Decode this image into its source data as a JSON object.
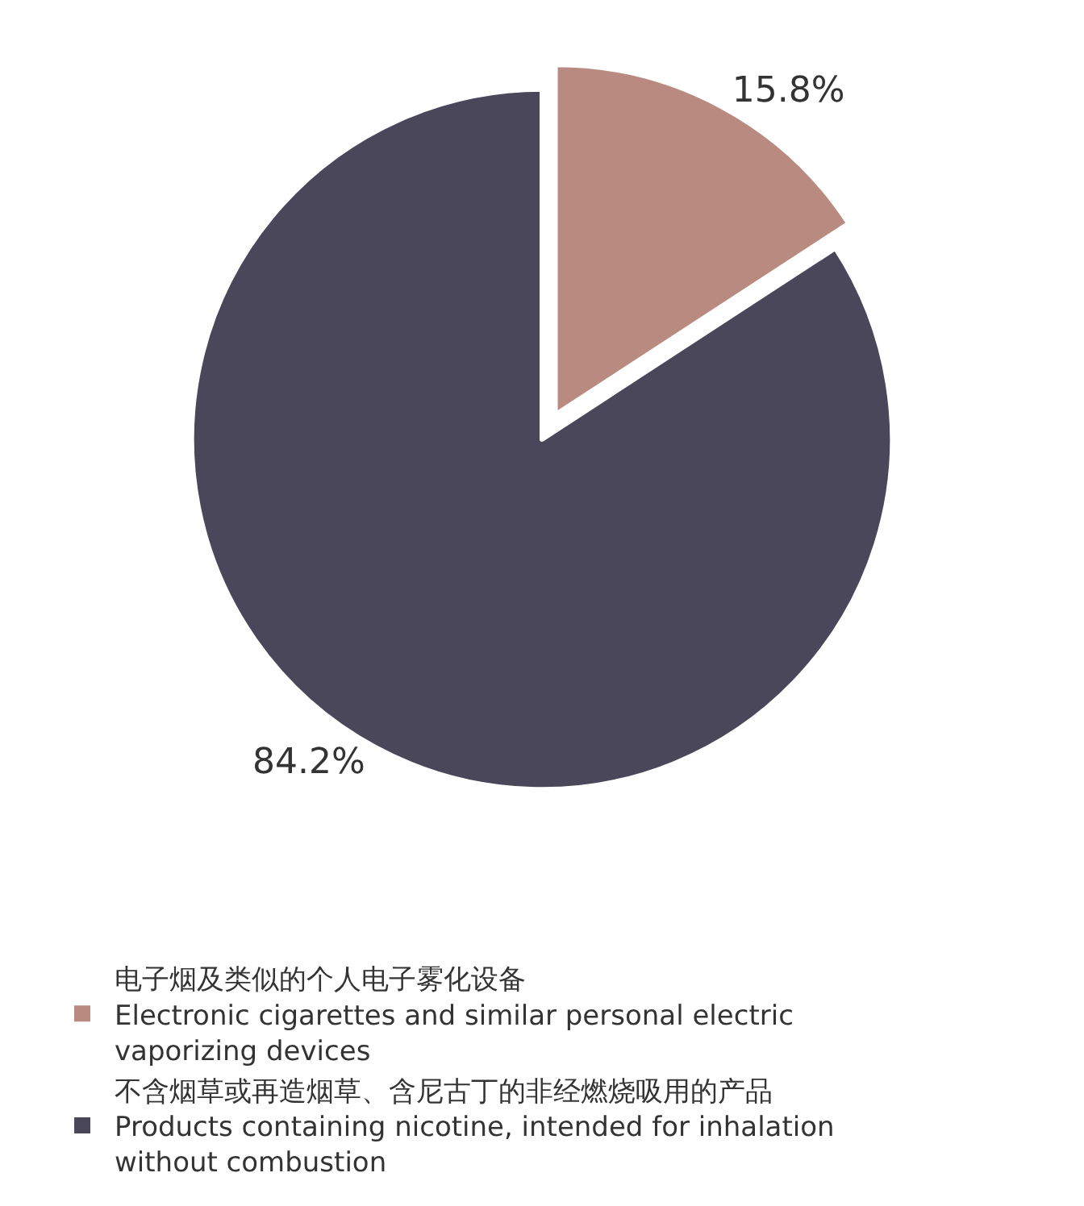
{
  "chart_data": {
    "type": "pie",
    "categories": [
      "电子烟及类似的个人电子雾化设备\nElectronic cigarettes and similar personal electric vaporizing devices",
      "不含烟草或再造烟草、含尼古丁的非经燃烧吸用的产品\nProducts containing nicotine, intended for inhalation without combustion"
    ],
    "values": [
      15.8,
      84.2
    ],
    "value_labels": [
      "15.8%",
      "84.2%"
    ],
    "colors": [
      "#b98a80",
      "#4a475a"
    ],
    "legend": "bottom"
  }
}
